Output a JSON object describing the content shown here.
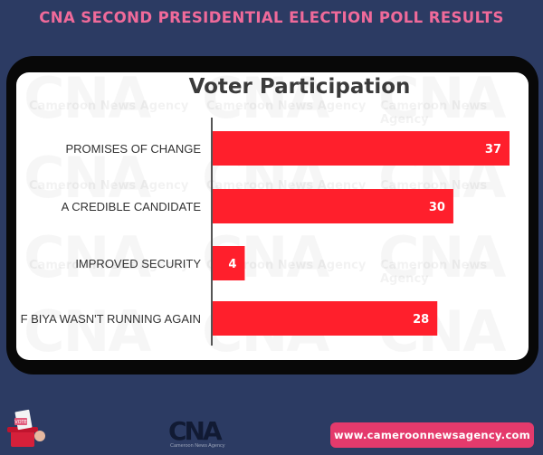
{
  "header": {
    "title": "CNA SECOND PRESIDENTIAL ELECTION POLL RESULTS"
  },
  "watermark": {
    "logo": "CNA",
    "agency": "Cameroon News Agency"
  },
  "chart_data": {
    "type": "bar",
    "orientation": "horizontal",
    "title": "Voter Participation",
    "categories": [
      "PROMISES OF CHANGE",
      "A CREDIBLE CANDIDATE",
      "IMPROVED SECURITY",
      "F BIYA WASN'T RUNNING AGAIN"
    ],
    "values": [
      37,
      30,
      4,
      28
    ],
    "xlim": [
      0,
      37
    ],
    "bar_color": "#ff1f2c",
    "label_color": "#ffffff",
    "xlabel": "",
    "ylabel": "",
    "grid": false,
    "legend": "none"
  },
  "footer": {
    "logo_text": "CNA",
    "logo_sub": "Cameroon News Agency",
    "url": "www.cameroonnewsagency.com",
    "vote_label": "VOTE"
  },
  "colors": {
    "background": "#2c3b63",
    "accent": "#e43a6c",
    "title": "#f06a9a"
  }
}
